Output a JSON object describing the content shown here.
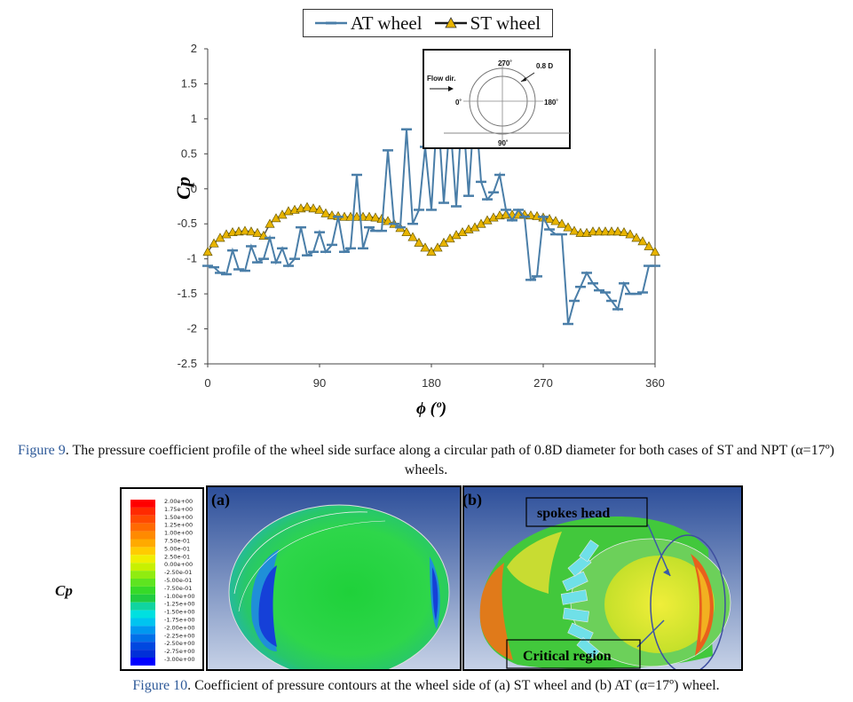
{
  "legend": {
    "at_label": "AT wheel",
    "st_label": "ST wheel"
  },
  "inset": {
    "flow_dir": "Flow dir.",
    "diameter": "0.8 D",
    "a0": "0˚",
    "a90": "90˚",
    "a180": "180˚",
    "a270": "270˚"
  },
  "colors": {
    "at_line": "#4a7ea8",
    "st_line": "#e8b400",
    "caption_blue": "#2e5a99"
  },
  "chart_data": {
    "type": "line",
    "xlabel": "ϕ (º)",
    "ylabel": "Cp",
    "xlim": [
      0,
      360
    ],
    "ylim": [
      -2.5,
      2
    ],
    "xticks": [
      "0",
      "90",
      "180",
      "270",
      "360"
    ],
    "yticks": [
      "2",
      "1.5",
      "1",
      "0.5",
      "0",
      "-0.5",
      "-1",
      "-1.5",
      "-2",
      "-2.5"
    ],
    "grid": false,
    "legend_position": "top-center",
    "series": [
      {
        "name": "AT wheel",
        "marker": "dash",
        "x": [
          0,
          5,
          10,
          15,
          20,
          25,
          30,
          35,
          40,
          45,
          50,
          55,
          60,
          65,
          70,
          75,
          80,
          85,
          90,
          95,
          100,
          105,
          110,
          115,
          120,
          125,
          130,
          135,
          140,
          145,
          150,
          155,
          160,
          165,
          170,
          175,
          180,
          185,
          190,
          195,
          200,
          205,
          210,
          215,
          220,
          225,
          230,
          235,
          240,
          245,
          250,
          255,
          260,
          265,
          270,
          275,
          280,
          285,
          290,
          295,
          300,
          305,
          310,
          315,
          320,
          325,
          330,
          335,
          340,
          345,
          350,
          355,
          360
        ],
        "y": [
          -1.1,
          -1.12,
          -1.2,
          -1.22,
          -0.88,
          -1.15,
          -1.17,
          -0.82,
          -1.05,
          -1.0,
          -0.7,
          -1.05,
          -0.85,
          -1.1,
          -1.0,
          -0.55,
          -0.95,
          -0.9,
          -0.62,
          -0.9,
          -0.8,
          -0.4,
          -0.9,
          -0.85,
          0.2,
          -0.85,
          -0.55,
          -0.6,
          -0.6,
          0.55,
          -0.5,
          -0.55,
          0.85,
          -0.5,
          -0.3,
          0.6,
          -0.3,
          1.2,
          -0.2,
          1.0,
          -0.25,
          1.2,
          -0.1,
          1.3,
          0.1,
          -0.15,
          -0.05,
          0.2,
          -0.3,
          -0.45,
          -0.3,
          -0.4,
          -1.3,
          -1.25,
          -0.4,
          -0.58,
          -0.65,
          -0.65,
          -1.93,
          -1.6,
          -1.4,
          -1.2,
          -1.35,
          -1.45,
          -1.48,
          -1.6,
          -1.72,
          -1.35,
          -1.5,
          -1.5,
          -1.48,
          -1.1,
          -1.1
        ]
      },
      {
        "name": "ST wheel",
        "marker": "triangle",
        "x": [
          0,
          5,
          10,
          15,
          20,
          25,
          30,
          35,
          40,
          45,
          50,
          55,
          60,
          65,
          70,
          75,
          80,
          85,
          90,
          95,
          100,
          105,
          110,
          115,
          120,
          125,
          130,
          135,
          140,
          145,
          150,
          155,
          160,
          165,
          170,
          175,
          180,
          185,
          190,
          195,
          200,
          205,
          210,
          215,
          220,
          225,
          230,
          235,
          240,
          245,
          250,
          255,
          260,
          265,
          270,
          275,
          280,
          285,
          290,
          295,
          300,
          305,
          310,
          315,
          320,
          325,
          330,
          335,
          340,
          345,
          350,
          355,
          360
        ],
        "y": [
          -0.9,
          -0.78,
          -0.7,
          -0.65,
          -0.62,
          -0.61,
          -0.6,
          -0.61,
          -0.63,
          -0.67,
          -0.5,
          -0.42,
          -0.37,
          -0.32,
          -0.3,
          -0.28,
          -0.26,
          -0.28,
          -0.3,
          -0.35,
          -0.38,
          -0.39,
          -0.4,
          -0.4,
          -0.4,
          -0.4,
          -0.4,
          -0.41,
          -0.43,
          -0.46,
          -0.5,
          -0.56,
          -0.62,
          -0.69,
          -0.77,
          -0.84,
          -0.9,
          -0.84,
          -0.77,
          -0.71,
          -0.66,
          -0.62,
          -0.58,
          -0.55,
          -0.5,
          -0.45,
          -0.41,
          -0.38,
          -0.37,
          -0.37,
          -0.37,
          -0.37,
          -0.38,
          -0.39,
          -0.41,
          -0.43,
          -0.46,
          -0.5,
          -0.55,
          -0.6,
          -0.63,
          -0.63,
          -0.61,
          -0.61,
          -0.61,
          -0.61,
          -0.61,
          -0.62,
          -0.65,
          -0.7,
          -0.75,
          -0.82,
          -0.9
        ]
      }
    ]
  },
  "fig9_caption": {
    "label": "Figure 9",
    "text": ". The pressure coefficient profile of the wheel side surface along a circular path of 0.8D diameter for both cases of ST and NPT (α=17º) wheels."
  },
  "contour": {
    "cp_label": "Cp",
    "colorbar_ticks": [
      "2.00e+00",
      "1.75e+00",
      "1.50e+00",
      "1.25e+00",
      "1.00e+00",
      "7.50e-01",
      "5.00e-01",
      "2.50e-01",
      "0.00e+00",
      "-2.50e-01",
      "-5.00e-01",
      "-7.50e-01",
      "-1.00e+00",
      "-1.25e+00",
      "-1.50e+00",
      "-1.75e+00",
      "-2.00e+00",
      "-2.25e+00",
      "-2.50e+00",
      "-2.75e+00",
      "-3.00e+00"
    ],
    "panel_a_label": "(a)",
    "panel_b_label": "(b)",
    "spokes_head": "spokes head",
    "critical_region": "Critical region"
  },
  "fig10_caption": {
    "label": "Figure 10",
    "text": ". Coefficient of pressure contours at the wheel side of (a) ST wheel and (b) AT (α=17º) wheel."
  }
}
